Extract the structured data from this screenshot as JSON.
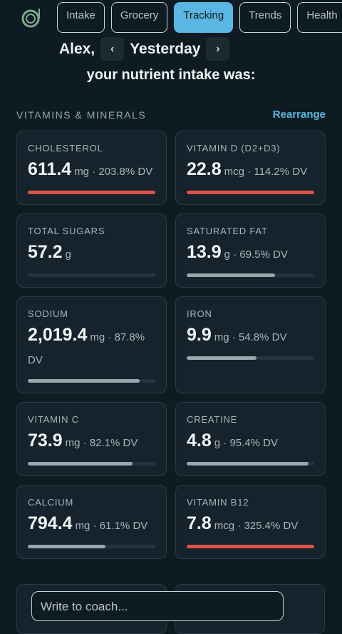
{
  "nav": {
    "tabs": [
      "Intake",
      "Grocery",
      "Tracking",
      "Trends",
      "Health"
    ],
    "active_tab": 2
  },
  "header": {
    "name": "Alex,",
    "day": "Yesterday",
    "subtitle": "your nutrient intake was:"
  },
  "section": {
    "title": "VITAMINS & MINERALS",
    "action": "Rearrange"
  },
  "cards": [
    {
      "label": "CHOLESTEROL",
      "amount": "611.4",
      "unit": "mg",
      "dv_text": "· 203.8% DV",
      "dv": 203.8,
      "color": "#e0524a"
    },
    {
      "label": "VITAMIN D (D2+D3)",
      "amount": "22.8",
      "unit": "mcg",
      "dv_text": "· 114.2% DV",
      "dv": 114.2,
      "color": "#e0524a"
    },
    {
      "label": "TOTAL SUGARS",
      "amount": "57.2",
      "unit": "g",
      "dv_text": null,
      "dv": null,
      "color": "#9aa7ae"
    },
    {
      "label": "SATURATED FAT",
      "amount": "13.9",
      "unit": "g",
      "dv_text": "· 69.5% DV",
      "dv": 69.5,
      "color": "#9aa7ae"
    },
    {
      "label": "SODIUM",
      "amount": "2,019.4",
      "unit": "mg",
      "dv_text": "· 87.8% DV",
      "dv": 87.8,
      "color": "#9aa7ae"
    },
    {
      "label": "IRON",
      "amount": "9.9",
      "unit": "mg",
      "dv_text": "· 54.8% DV",
      "dv": 54.8,
      "color": "#9aa7ae"
    },
    {
      "label": "VITAMIN C",
      "amount": "73.9",
      "unit": "mg",
      "dv_text": "· 82.1% DV",
      "dv": 82.1,
      "color": "#9aa7ae"
    },
    {
      "label": "CREATINE",
      "amount": "4.8",
      "unit": "g",
      "dv_text": "· 95.4% DV",
      "dv": 95.4,
      "color": "#9aa7ae"
    },
    {
      "label": "CALCIUM",
      "amount": "794.4",
      "unit": "mg",
      "dv_text": "· 61.1% DV",
      "dv": 61.1,
      "color": "#9aa7ae"
    },
    {
      "label": "VITAMIN B12",
      "amount": "7.8",
      "unit": "mcg",
      "dv_text": "· 325.4% DV",
      "dv": 325.4,
      "color": "#e0524a"
    }
  ],
  "composer": {
    "placeholder": "Write to coach..."
  }
}
